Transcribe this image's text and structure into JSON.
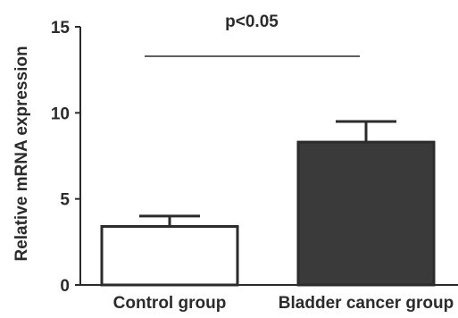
{
  "chart_data": {
    "type": "bar",
    "categories": [
      "Control group",
      "Bladder cancer group"
    ],
    "values": [
      3.4,
      8.3
    ],
    "errors": [
      0.6,
      1.2
    ],
    "bar_fill": [
      "#ffffff",
      "#3a3a3a"
    ],
    "bar_stroke": "#2b2b2b",
    "ylabel": "Relative mRNA expression",
    "ylim": [
      0,
      15
    ],
    "yticks": [
      0,
      5,
      10,
      15
    ],
    "annotation": "p<0.05",
    "grid": false
  }
}
